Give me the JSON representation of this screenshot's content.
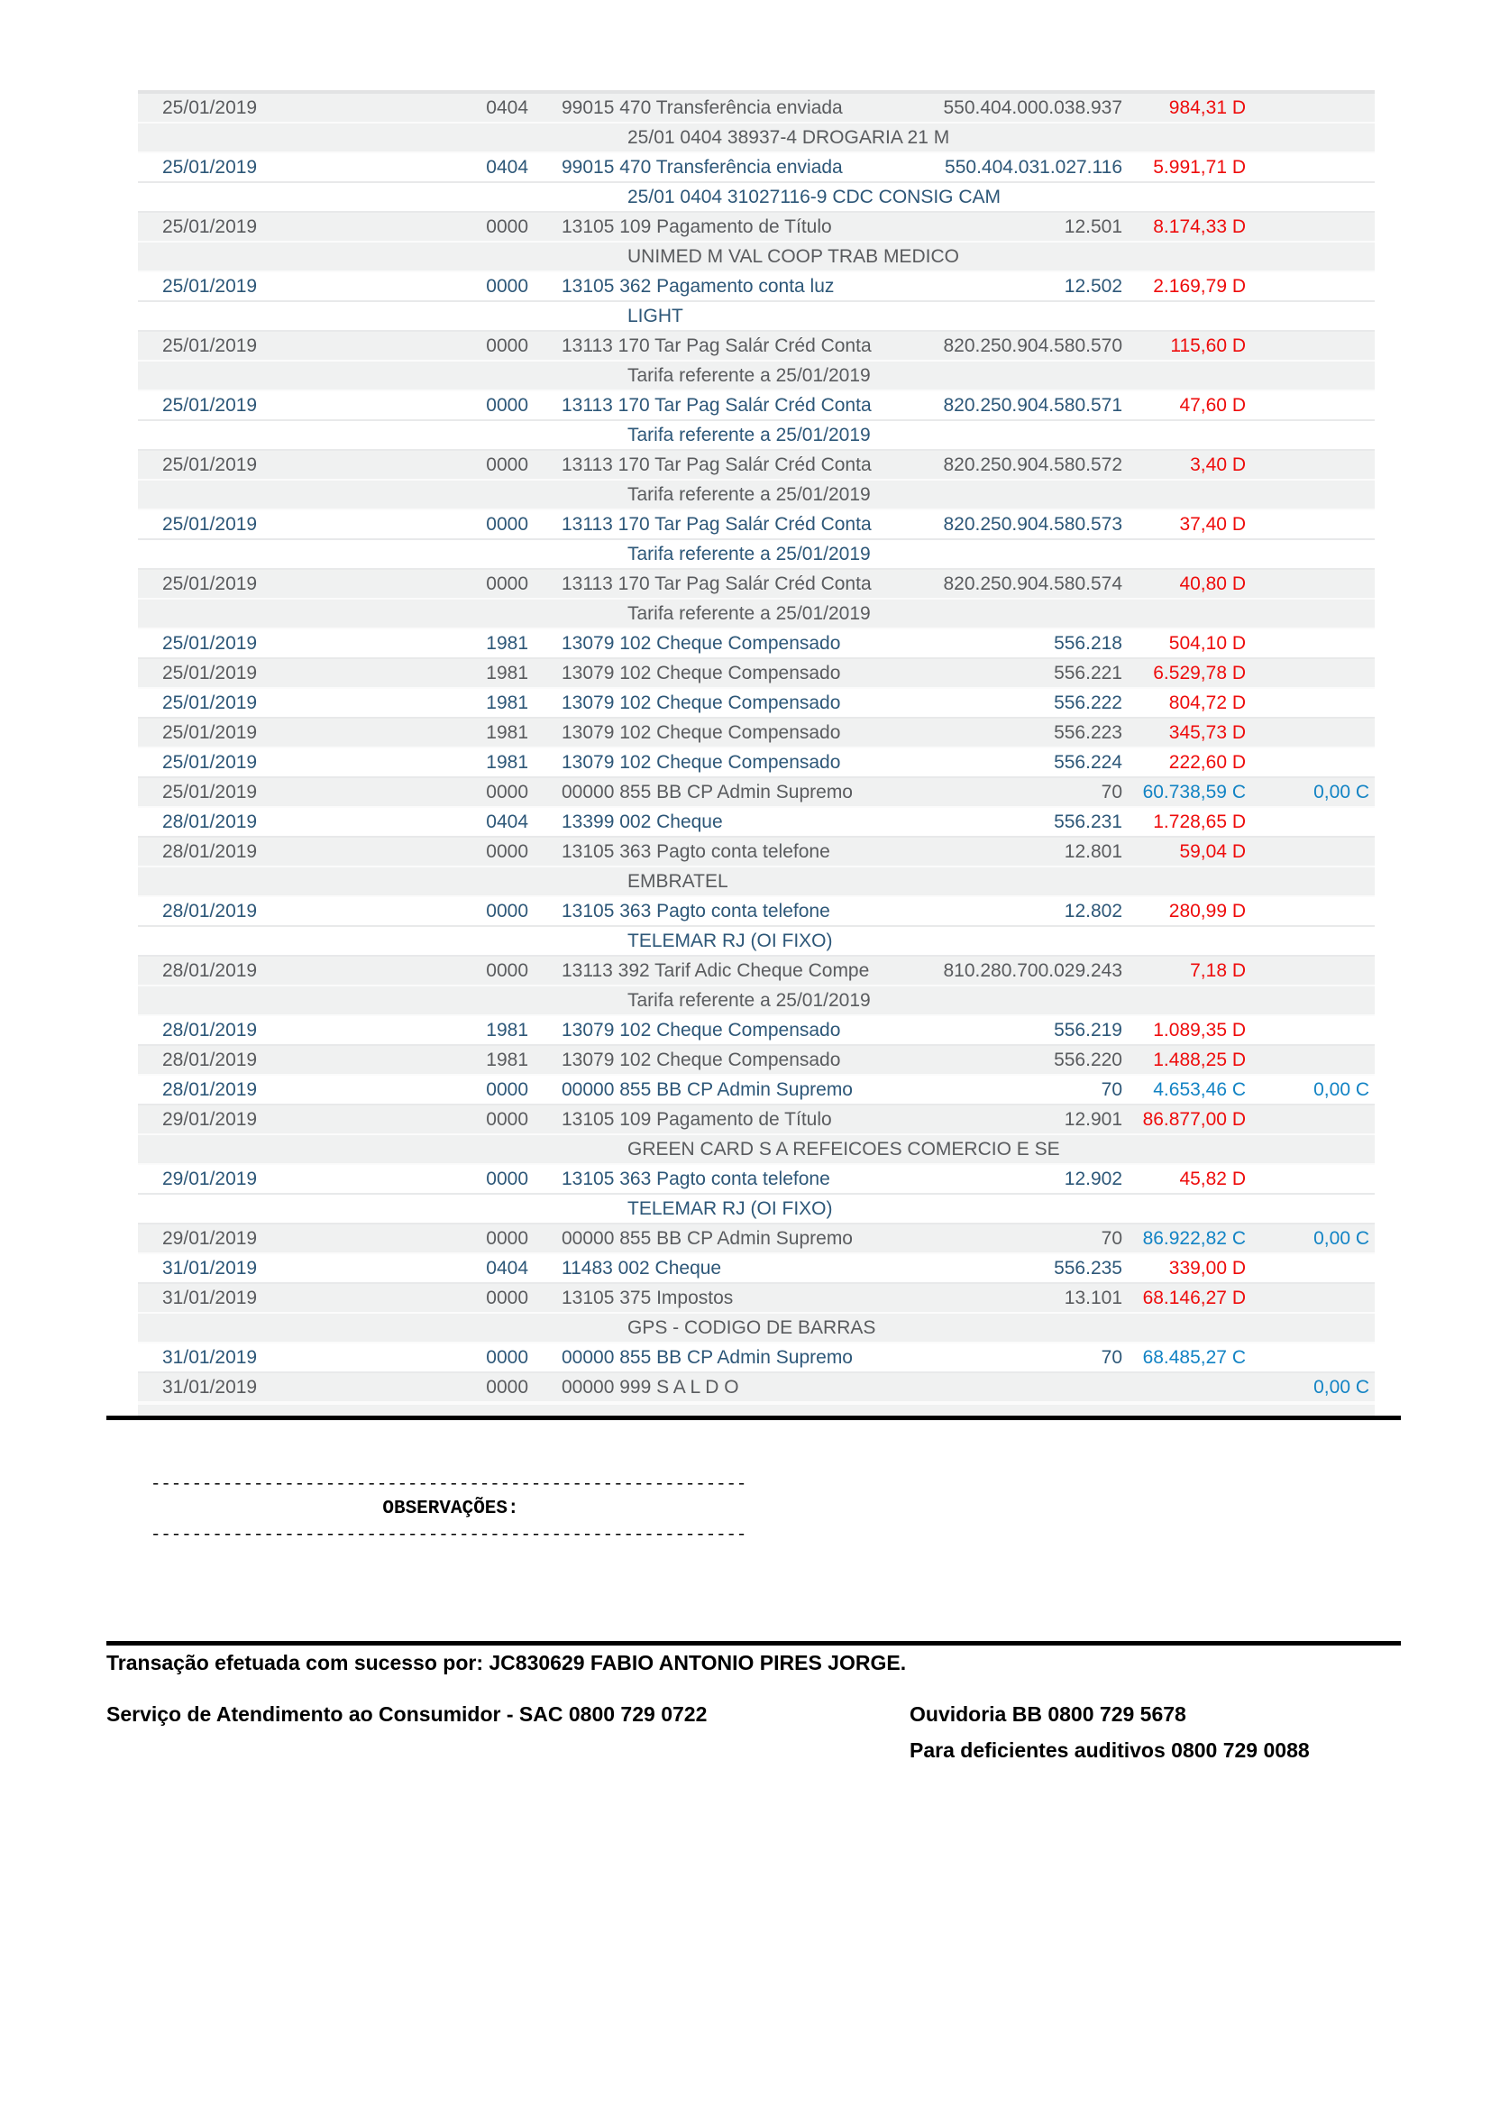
{
  "statement": {
    "transactions": [
      {
        "date": "25/01/2019",
        "branch": "0404",
        "history": "99015 470 Transferência enviada",
        "ref": "550.404.000.038.937",
        "amount": "984,31 D",
        "amount_type": "debit",
        "balance": "",
        "description": "25/01 0404 38937-4 DROGARIA 21 M"
      },
      {
        "date": "25/01/2019",
        "branch": "0404",
        "history": "99015 470 Transferência enviada",
        "ref": "550.404.031.027.116",
        "amount": "5.991,71 D",
        "amount_type": "debit",
        "balance": "",
        "description": "25/01 0404 31027116-9 CDC CONSIG CAM"
      },
      {
        "date": "25/01/2019",
        "branch": "0000",
        "history": "13105 109 Pagamento de Título",
        "ref": "12.501",
        "amount": "8.174,33 D",
        "amount_type": "debit",
        "balance": "",
        "description": "UNIMED M VAL COOP TRAB MEDICO"
      },
      {
        "date": "25/01/2019",
        "branch": "0000",
        "history": "13105 362 Pagamento conta luz",
        "ref": "12.502",
        "amount": "2.169,79 D",
        "amount_type": "debit",
        "balance": "",
        "description": "LIGHT"
      },
      {
        "date": "25/01/2019",
        "branch": "0000",
        "history": "13113 170 Tar Pag Salár Créd Conta",
        "ref": "820.250.904.580.570",
        "amount": "115,60 D",
        "amount_type": "debit",
        "balance": "",
        "description": "Tarifa referente a 25/01/2019"
      },
      {
        "date": "25/01/2019",
        "branch": "0000",
        "history": "13113 170 Tar Pag Salár Créd Conta",
        "ref": "820.250.904.580.571",
        "amount": "47,60 D",
        "amount_type": "debit",
        "balance": "",
        "description": "Tarifa referente a 25/01/2019"
      },
      {
        "date": "25/01/2019",
        "branch": "0000",
        "history": "13113 170 Tar Pag Salár Créd Conta",
        "ref": "820.250.904.580.572",
        "amount": "3,40 D",
        "amount_type": "debit",
        "balance": "",
        "description": "Tarifa referente a 25/01/2019"
      },
      {
        "date": "25/01/2019",
        "branch": "0000",
        "history": "13113 170 Tar Pag Salár Créd Conta",
        "ref": "820.250.904.580.573",
        "amount": "37,40 D",
        "amount_type": "debit",
        "balance": "",
        "description": "Tarifa referente a 25/01/2019"
      },
      {
        "date": "25/01/2019",
        "branch": "0000",
        "history": "13113 170 Tar Pag Salár Créd Conta",
        "ref": "820.250.904.580.574",
        "amount": "40,80 D",
        "amount_type": "debit",
        "balance": "",
        "description": "Tarifa referente a 25/01/2019"
      },
      {
        "date": "25/01/2019",
        "branch": "1981",
        "history": "13079 102 Cheque Compensado",
        "ref": "556.218",
        "amount": "504,10 D",
        "amount_type": "debit",
        "balance": "",
        "description": ""
      },
      {
        "date": "25/01/2019",
        "branch": "1981",
        "history": "13079 102 Cheque Compensado",
        "ref": "556.221",
        "amount": "6.529,78 D",
        "amount_type": "debit",
        "balance": "",
        "description": ""
      },
      {
        "date": "25/01/2019",
        "branch": "1981",
        "history": "13079 102 Cheque Compensado",
        "ref": "556.222",
        "amount": "804,72 D",
        "amount_type": "debit",
        "balance": "",
        "description": ""
      },
      {
        "date": "25/01/2019",
        "branch": "1981",
        "history": "13079 102 Cheque Compensado",
        "ref": "556.223",
        "amount": "345,73 D",
        "amount_type": "debit",
        "balance": "",
        "description": ""
      },
      {
        "date": "25/01/2019",
        "branch": "1981",
        "history": "13079 102 Cheque Compensado",
        "ref": "556.224",
        "amount": "222,60 D",
        "amount_type": "debit",
        "balance": "",
        "description": ""
      },
      {
        "date": "25/01/2019",
        "branch": "0000",
        "history": "00000 855 BB CP Admin Supremo",
        "ref": "70",
        "amount": "60.738,59 C",
        "amount_type": "credit",
        "balance": "0,00 C",
        "description": ""
      },
      {
        "date": "28/01/2019",
        "branch": "0404",
        "history": "13399 002 Cheque",
        "ref": "556.231",
        "amount": "1.728,65 D",
        "amount_type": "debit",
        "balance": "",
        "description": ""
      },
      {
        "date": "28/01/2019",
        "branch": "0000",
        "history": "13105 363 Pagto conta telefone",
        "ref": "12.801",
        "amount": "59,04 D",
        "amount_type": "debit",
        "balance": "",
        "description": "EMBRATEL"
      },
      {
        "date": "28/01/2019",
        "branch": "0000",
        "history": "13105 363 Pagto conta telefone",
        "ref": "12.802",
        "amount": "280,99 D",
        "amount_type": "debit",
        "balance": "",
        "description": "TELEMAR RJ (OI FIXO)"
      },
      {
        "date": "28/01/2019",
        "branch": "0000",
        "history": "13113 392 Tarif Adic Cheque Compe",
        "ref": "810.280.700.029.243",
        "amount": "7,18 D",
        "amount_type": "debit",
        "balance": "",
        "description": "Tarifa referente a 25/01/2019"
      },
      {
        "date": "28/01/2019",
        "branch": "1981",
        "history": "13079 102 Cheque Compensado",
        "ref": "556.219",
        "amount": "1.089,35 D",
        "amount_type": "debit",
        "balance": "",
        "description": ""
      },
      {
        "date": "28/01/2019",
        "branch": "1981",
        "history": "13079 102 Cheque Compensado",
        "ref": "556.220",
        "amount": "1.488,25 D",
        "amount_type": "debit",
        "balance": "",
        "description": ""
      },
      {
        "date": "28/01/2019",
        "branch": "0000",
        "history": "00000 855 BB CP Admin Supremo",
        "ref": "70",
        "amount": "4.653,46 C",
        "amount_type": "credit",
        "balance": "0,00 C",
        "description": ""
      },
      {
        "date": "29/01/2019",
        "branch": "0000",
        "history": "13105 109 Pagamento de Título",
        "ref": "12.901",
        "amount": "86.877,00 D",
        "amount_type": "debit",
        "balance": "",
        "description": "GREEN CARD S A REFEICOES COMERCIO E SE"
      },
      {
        "date": "29/01/2019",
        "branch": "0000",
        "history": "13105 363 Pagto conta telefone",
        "ref": "12.902",
        "amount": "45,82 D",
        "amount_type": "debit",
        "balance": "",
        "description": "TELEMAR RJ (OI FIXO)"
      },
      {
        "date": "29/01/2019",
        "branch": "0000",
        "history": "00000 855 BB CP Admin Supremo",
        "ref": "70",
        "amount": "86.922,82 C",
        "amount_type": "credit",
        "balance": "0,00 C",
        "description": ""
      },
      {
        "date": "31/01/2019",
        "branch": "0404",
        "history": "11483 002 Cheque",
        "ref": "556.235",
        "amount": "339,00 D",
        "amount_type": "debit",
        "balance": "",
        "description": ""
      },
      {
        "date": "31/01/2019",
        "branch": "0000",
        "history": "13105 375 Impostos",
        "ref": "13.101",
        "amount": "68.146,27 D",
        "amount_type": "debit",
        "balance": "",
        "description": "GPS - CODIGO DE BARRAS"
      },
      {
        "date": "31/01/2019",
        "branch": "0000",
        "history": "00000 855 BB CP Admin Supremo",
        "ref": "70",
        "amount": "68.485,27 C",
        "amount_type": "credit",
        "balance": "",
        "description": ""
      },
      {
        "date": "31/01/2019",
        "branch": "0000",
        "history": "00000 999 S A L D O",
        "ref": "",
        "amount": "",
        "amount_type": "",
        "balance": "0,00 C",
        "description": ""
      }
    ]
  },
  "observations": {
    "dashes_top": "----------------------------------------------------------",
    "label": "OBSERVAÇÕES:",
    "dashes_bottom": "----------------------------------------------------------"
  },
  "footer": {
    "success_message": "Transação efetuada com sucesso por: JC830629 FABIO ANTONIO PIRES JORGE.",
    "sac": "Serviço de Atendimento ao Consumidor - SAC 0800 729 0722",
    "ouvidoria": "Ouvidoria BB 0800 729 5678",
    "deaf_line": "Para deficientes auditivos 0800 729 0088"
  },
  "colors": {
    "debit_amount": "#ee0c0c",
    "credit_amount": "#1283c4",
    "row_text_dark": "#595b5e",
    "row_text_blue": "#2d5778",
    "row_bg_grey": "#f0f1f1",
    "rule_black": "#000000"
  }
}
